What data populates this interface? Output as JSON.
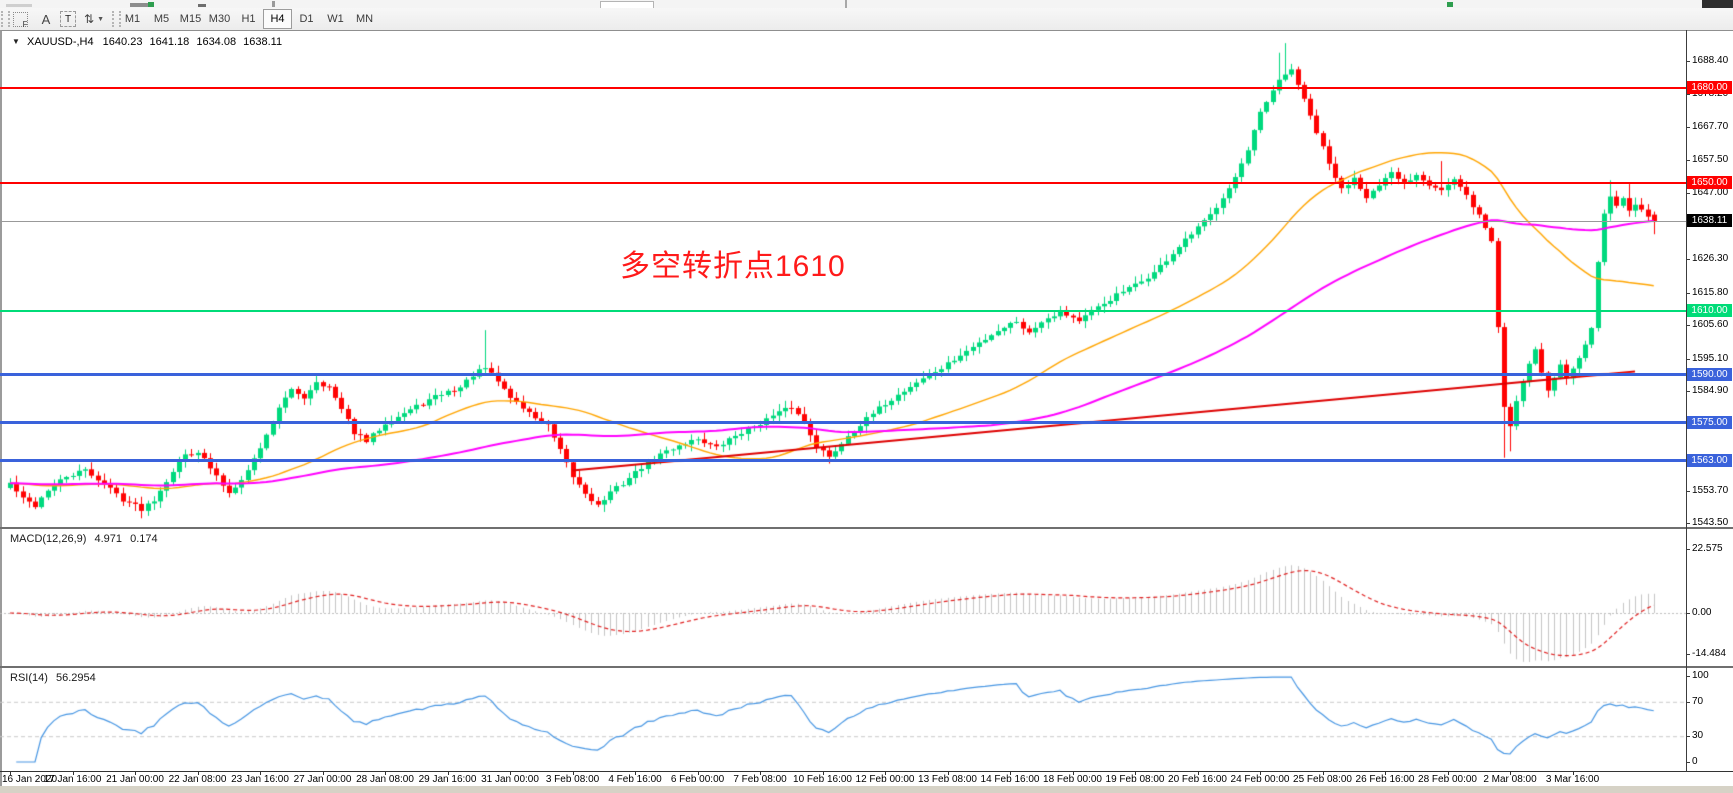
{
  "toolbar": {
    "tools": [
      {
        "name": "indicators-grid",
        "glyph": "F"
      },
      {
        "name": "label-tool",
        "glyph": "A"
      },
      {
        "name": "text-tool",
        "glyph": "T"
      },
      {
        "name": "arrow-tools",
        "glyph": "⇅"
      }
    ],
    "timeframes": [
      {
        "label": "M1"
      },
      {
        "label": "M5"
      },
      {
        "label": "M15"
      },
      {
        "label": "M30"
      },
      {
        "label": "H1"
      },
      {
        "label": "H4",
        "active": true
      },
      {
        "label": "D1"
      },
      {
        "label": "W1"
      },
      {
        "label": "MN"
      }
    ]
  },
  "chart": {
    "title": {
      "symbol_period": "XAUUSD-,H4",
      "open": "1640.23",
      "high": "1641.18",
      "low": "1634.08",
      "close": "1638.11"
    },
    "annotation": {
      "text": "多空转折点1610",
      "color": "#FF1A1A"
    },
    "levels": [
      {
        "price": 1680,
        "label": "1680.00",
        "color": "#FF0000",
        "thickness": 2
      },
      {
        "price": 1650,
        "label": "1650.00",
        "color": "#FF0000",
        "thickness": 2
      },
      {
        "price": 1610,
        "label": "1610.00",
        "color": "#00DC78",
        "thickness": 2
      },
      {
        "price": 1590,
        "label": "1590.00",
        "color": "#3A62DB",
        "thickness": 3
      },
      {
        "price": 1575,
        "label": "1575.00",
        "color": "#3A62DB",
        "thickness": 3
      },
      {
        "price": 1563,
        "label": "1563.00",
        "color": "#3A62DB",
        "thickness": 3
      }
    ],
    "current_price": {
      "value": "1638.11",
      "price": 1638.11,
      "line_color": "#999999",
      "badge_bg": "#000000",
      "badge_text": "#FFFFFF"
    },
    "price_axis_ticks": [
      "1688.40",
      "1678.20",
      "1667.70",
      "1657.50",
      "1647.00",
      "1626.30",
      "1615.80",
      "1605.60",
      "1595.10",
      "1584.90",
      "1553.70",
      "1543.50"
    ]
  },
  "macd": {
    "label": "MACD(12,26,9)",
    "value": "4.971",
    "signal_value": "0.174",
    "y_ticks": [
      "22.575",
      "0.00",
      "-14.484"
    ],
    "histogram_color": "#C4C4C4",
    "signal_color": "#E02020"
  },
  "rsi": {
    "label": "RSI(14)",
    "value": "56.2954",
    "y_ticks": [
      "100",
      "70",
      "30",
      "0"
    ],
    "levels": [
      70,
      30
    ],
    "line_color": "#4796E3"
  },
  "x_axis": {
    "labels": [
      "16 Jan 2020",
      "17 Jan 16:00",
      "21 Jan 00:00",
      "22 Jan 08:00",
      "23 Jan 16:00",
      "27 Jan 00:00",
      "28 Jan 08:00",
      "29 Jan 16:00",
      "31 Jan 00:00",
      "3 Feb 08:00",
      "4 Feb 16:00",
      "6 Feb 00:00",
      "7 Feb 08:00",
      "10 Feb 16:00",
      "12 Feb 00:00",
      "13 Feb 08:00",
      "14 Feb 16:00",
      "18 Feb 00:00",
      "19 Feb 08:00",
      "20 Feb 16:00",
      "24 Feb 00:00",
      "25 Feb 08:00",
      "26 Feb 16:00",
      "28 Feb 00:00",
      "2 Mar 08:00",
      "3 Mar 16:00"
    ]
  },
  "chart_data": {
    "type": "candlestick",
    "symbol": "XAUUSD-",
    "timeframe": "H4",
    "bars": 264,
    "up_color": "#00D97E",
    "down_color": "#FF0202",
    "last_bar": {
      "o": 1640.23,
      "h": 1641.18,
      "l": 1634.08,
      "c": 1638.11
    },
    "price_path": [
      [
        0,
        1556
      ],
      [
        2,
        1551
      ],
      [
        4,
        1549
      ],
      [
        6,
        1554
      ],
      [
        9,
        1558
      ],
      [
        12,
        1560
      ],
      [
        15,
        1556
      ],
      [
        18,
        1551
      ],
      [
        21,
        1548
      ],
      [
        23,
        1551
      ],
      [
        26,
        1560
      ],
      [
        28,
        1565
      ],
      [
        30,
        1566
      ],
      [
        33,
        1558
      ],
      [
        35,
        1553
      ],
      [
        38,
        1560
      ],
      [
        41,
        1571
      ],
      [
        43,
        1580
      ],
      [
        45,
        1585
      ],
      [
        47,
        1583
      ],
      [
        49,
        1588
      ],
      [
        51,
        1586
      ],
      [
        53,
        1579
      ],
      [
        55,
        1572
      ],
      [
        57,
        1569
      ],
      [
        60,
        1575
      ],
      [
        63,
        1578
      ],
      [
        66,
        1581
      ],
      [
        69,
        1584
      ],
      [
        72,
        1586
      ],
      [
        74,
        1590
      ],
      [
        76,
        1592
      ],
      [
        78,
        1588
      ],
      [
        80,
        1583
      ],
      [
        83,
        1578
      ],
      [
        86,
        1574
      ],
      [
        88,
        1566
      ],
      [
        90,
        1558
      ],
      [
        92,
        1553
      ],
      [
        94,
        1549
      ],
      [
        96,
        1553
      ],
      [
        98,
        1556
      ],
      [
        101,
        1561
      ],
      [
        104,
        1565
      ],
      [
        107,
        1568
      ],
      [
        110,
        1570
      ],
      [
        113,
        1567
      ],
      [
        116,
        1571
      ],
      [
        119,
        1574
      ],
      [
        122,
        1577
      ],
      [
        125,
        1580
      ],
      [
        127,
        1575
      ],
      [
        129,
        1568
      ],
      [
        131,
        1564
      ],
      [
        134,
        1571
      ],
      [
        137,
        1576
      ],
      [
        140,
        1581
      ],
      [
        143,
        1585
      ],
      [
        146,
        1589
      ],
      [
        149,
        1592
      ],
      [
        152,
        1596
      ],
      [
        155,
        1600
      ],
      [
        158,
        1604
      ],
      [
        161,
        1607
      ],
      [
        163,
        1603
      ],
      [
        165,
        1607
      ],
      [
        168,
        1610
      ],
      [
        171,
        1607
      ],
      [
        174,
        1611
      ],
      [
        177,
        1615
      ],
      [
        180,
        1618
      ],
      [
        183,
        1622
      ],
      [
        186,
        1628
      ],
      [
        189,
        1634
      ],
      [
        192,
        1640
      ],
      [
        194,
        1646
      ],
      [
        196,
        1652
      ],
      [
        198,
        1660
      ],
      [
        200,
        1672
      ],
      [
        203,
        1682
      ],
      [
        205,
        1686
      ],
      [
        207,
        1676
      ],
      [
        209,
        1666
      ],
      [
        211,
        1656
      ],
      [
        213,
        1648
      ],
      [
        215,
        1652
      ],
      [
        217,
        1646
      ],
      [
        219,
        1649
      ],
      [
        221,
        1653
      ],
      [
        223,
        1650
      ],
      [
        225,
        1653
      ],
      [
        227,
        1650
      ],
      [
        229,
        1648
      ],
      [
        231,
        1651
      ],
      [
        233,
        1646
      ],
      [
        235,
        1640
      ],
      [
        237,
        1632
      ],
      [
        238,
        1605
      ],
      [
        239,
        1580
      ],
      [
        240,
        1574
      ],
      [
        241,
        1582
      ],
      [
        242,
        1588
      ],
      [
        243,
        1594
      ],
      [
        244,
        1598
      ],
      [
        245,
        1591
      ],
      [
        246,
        1585
      ],
      [
        247,
        1589
      ],
      [
        248,
        1593
      ],
      [
        249,
        1589
      ],
      [
        251,
        1596
      ],
      [
        253,
        1604
      ],
      [
        254,
        1626
      ],
      [
        255,
        1640
      ],
      [
        256,
        1646
      ],
      [
        257,
        1643
      ],
      [
        258,
        1646
      ],
      [
        259,
        1641
      ],
      [
        260,
        1644
      ],
      [
        262,
        1640
      ],
      [
        263,
        1638.11
      ]
    ],
    "wick_events": [
      [
        21,
        1545
      ],
      [
        76,
        1604
      ],
      [
        95,
        1547
      ],
      [
        203,
        1691
      ],
      [
        204,
        1694
      ],
      [
        229,
        1657
      ],
      [
        239,
        1564
      ],
      [
        240,
        1566
      ],
      [
        256,
        1651
      ],
      [
        259,
        1650
      ]
    ],
    "ma_fast": {
      "period": 34,
      "color": "#FFA500"
    },
    "ma_slow": {
      "period": 80,
      "color": "#FF00FF"
    },
    "trendline": {
      "from_bar": 90,
      "from_price": 1560,
      "to_bar": 260,
      "to_price": 1591,
      "color": "#DD0000"
    },
    "macd_params": [
      12,
      26,
      9
    ],
    "rsi_period": 14,
    "y_range": [
      1543.5,
      1694
    ]
  }
}
